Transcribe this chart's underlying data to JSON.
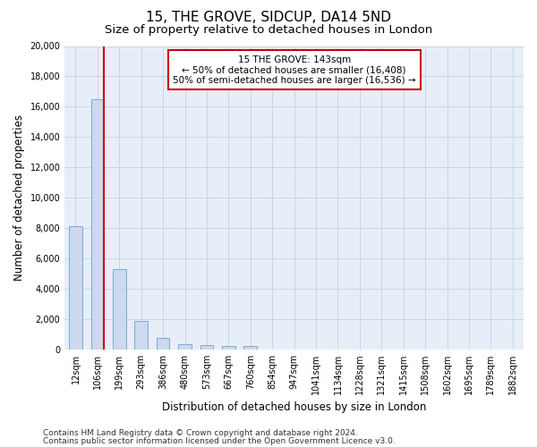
{
  "title_line1": "15, THE GROVE, SIDCUP, DA14 5ND",
  "title_line2": "Size of property relative to detached houses in London",
  "xlabel": "Distribution of detached houses by size in London",
  "ylabel": "Number of detached properties",
  "categories": [
    "12sqm",
    "106sqm",
    "199sqm",
    "293sqm",
    "386sqm",
    "480sqm",
    "573sqm",
    "667sqm",
    "760sqm",
    "854sqm",
    "947sqm",
    "1041sqm",
    "1134sqm",
    "1228sqm",
    "1321sqm",
    "1415sqm",
    "1508sqm",
    "1602sqm",
    "1695sqm",
    "1789sqm",
    "1882sqm"
  ],
  "values": [
    8100,
    16500,
    5300,
    1850,
    750,
    350,
    270,
    230,
    200,
    0,
    0,
    0,
    0,
    0,
    0,
    0,
    0,
    0,
    0,
    0,
    0
  ],
  "bar_color": "#ccd9ee",
  "bar_edge_color": "#7aaad0",
  "grid_color": "#c8d4e8",
  "background_color": "#e8eef8",
  "annotation_text": "15 THE GROVE: 143sqm\n← 50% of detached houses are smaller (16,408)\n50% of semi-detached houses are larger (16,536) →",
  "annotation_box_color": "white",
  "annotation_box_edge_color": "#cc0000",
  "red_line_color": "#cc0000",
  "ylim": [
    0,
    20000
  ],
  "yticks": [
    0,
    2000,
    4000,
    6000,
    8000,
    10000,
    12000,
    14000,
    16000,
    18000,
    20000
  ],
  "title_fontsize": 11,
  "subtitle_fontsize": 9.5,
  "axis_label_fontsize": 8.5,
  "tick_fontsize": 7,
  "annotation_fontsize": 7.5,
  "footer_fontsize": 6.5,
  "footer_line1": "Contains HM Land Registry data © Crown copyright and database right 2024.",
  "footer_line2": "Contains public sector information licensed under the Open Government Licence v3.0."
}
